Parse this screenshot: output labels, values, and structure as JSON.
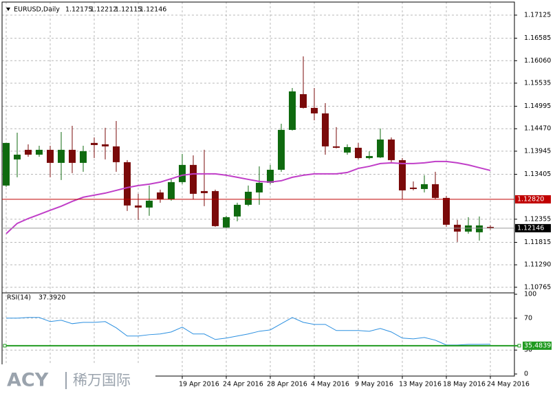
{
  "chart_data": [
    {
      "type": "candlestick",
      "title": "EURUSD,Daily",
      "categories": [
        null,
        null,
        null,
        null,
        null,
        null,
        null,
        null,
        null,
        null,
        null,
        null,
        null,
        null,
        null,
        null,
        "19 Apr 2016",
        null,
        null,
        null,
        "24 Apr 2016",
        null,
        null,
        null,
        "28 Apr 2016",
        null,
        null,
        null,
        "4 May 2016",
        null,
        null,
        null,
        "9 May 2016",
        null,
        null,
        null,
        "13 May 2016",
        null,
        null,
        null,
        "18 May 2016",
        null,
        null,
        null,
        "24 May 2016"
      ],
      "open": [
        1.13142,
        1.13752,
        1.13977,
        1.13864,
        1.13977,
        1.13672,
        1.13977,
        1.13672,
        1.14138,
        1.14105,
        1.14057,
        1.13688,
        1.12676,
        1.12628,
        1.12981,
        1.12821,
        1.13222,
        1.13624,
        1.13013,
        1.13013,
        1.12162,
        1.12419,
        1.12692,
        1.12981,
        1.13206,
        1.13511,
        1.14443,
        1.15278,
        1.14957,
        1.14828,
        1.14057,
        1.13913,
        1.14025,
        1.13784,
        1.138,
        1.14218,
        1.13736,
        1.13094,
        1.13061,
        1.13174,
        1.12853,
        1.12226,
        1.12066,
        1.1205,
        1.12175
      ],
      "high": [
        1.14138,
        1.14378,
        1.14105,
        1.14073,
        1.14073,
        1.14394,
        1.14539,
        1.14073,
        1.14266,
        1.14491,
        1.14651,
        1.13736,
        1.12949,
        1.13142,
        1.13045,
        1.13302,
        1.13881,
        1.13848,
        1.13977,
        1.13045,
        1.12435,
        1.1274,
        1.13142,
        1.13591,
        1.13624,
        1.14587,
        1.15422,
        1.16161,
        1.15422,
        1.15069,
        1.14507,
        1.14105,
        1.14138,
        1.13945,
        1.14475,
        1.14266,
        1.13784,
        1.13238,
        1.13383,
        1.13463,
        1.12901,
        1.12339,
        1.12403,
        1.12419,
        1.12212
      ],
      "low": [
        1.1311,
        1.13335,
        1.13816,
        1.13816,
        1.13335,
        1.1327,
        1.13431,
        1.13463,
        1.13784,
        1.13752,
        1.13463,
        1.12548,
        1.12339,
        1.12435,
        1.1274,
        1.12788,
        1.13174,
        1.12821,
        1.1266,
        1.12178,
        1.12146,
        1.12307,
        1.1266,
        1.12692,
        1.13174,
        1.13463,
        1.14427,
        1.14941,
        1.14667,
        1.13864,
        1.14009,
        1.13864,
        1.13752,
        1.13752,
        1.13784,
        1.13688,
        1.12821,
        1.13029,
        1.12981,
        1.12821,
        1.12178,
        1.11825,
        1.12018,
        1.11857,
        1.12115
      ],
      "close": [
        1.14138,
        1.13864,
        1.13864,
        1.13977,
        1.13672,
        1.13977,
        1.13672,
        1.13945,
        1.14089,
        1.14057,
        1.13688,
        1.12676,
        1.12628,
        1.12788,
        1.12821,
        1.13222,
        1.13624,
        1.12949,
        1.12965,
        1.12194,
        1.12403,
        1.12692,
        1.12997,
        1.13206,
        1.13511,
        1.14443,
        1.15342,
        1.14957,
        1.14828,
        1.14057,
        1.14025,
        1.14041,
        1.13784,
        1.13832,
        1.14218,
        1.13736,
        1.13029,
        1.13061,
        1.13174,
        1.12853,
        1.12226,
        1.12066,
        1.1221,
        1.1221,
        1.12146
      ],
      "up_color": "#0f6a0f",
      "down_color": "#7a0a0a",
      "overlays": [
        {
          "color": "#c03ec8",
          "values": [
            1.12018,
            1.12258,
            1.12371,
            1.12467,
            1.12564,
            1.1266,
            1.12772,
            1.12869,
            1.12917,
            1.12965,
            1.13029,
            1.13094,
            1.13142,
            1.13174,
            1.13222,
            1.13302,
            1.13383,
            1.13415,
            1.13415,
            1.13415,
            1.13383,
            1.13335,
            1.13286,
            1.13238,
            1.13222,
            1.13254,
            1.13335,
            1.13383,
            1.13415,
            1.13415,
            1.13415,
            1.13447,
            1.13543,
            1.13591,
            1.13656,
            1.13672,
            1.13656,
            1.13656,
            1.13672,
            1.13704,
            1.13704,
            1.13672,
            1.13624,
            1.13559,
            1.13495
          ]
        }
      ],
      "hlines": [
        {
          "value": 1.1282,
          "label": "1.12820",
          "color": "#c00000"
        }
      ],
      "ylim": [
        1.1065,
        1.1743
      ],
      "yticks": [
        1.17125,
        1.16585,
        {
          "value": 1.1606,
          "label": "1.16060"
        },
        1.15535,
        1.14995,
        {
          "value": 1.1447,
          "label": "1.14470"
        },
        1.13945,
        1.13405,
        1.12355,
        1.11815,
        {
          "value": 1.1129,
          "label": "1.11290"
        },
        1.10765
      ],
      "grid": true
    },
    {
      "type": "line",
      "title": "RSI(14)",
      "title_value": {
        "value": 37.392,
        "label": "37.3920"
      },
      "values": [
        70,
        70,
        70.9,
        70.9,
        65.7,
        67.4,
        63.1,
        64.8,
        64.8,
        65.7,
        57.9,
        47.6,
        47.6,
        49.3,
        50.2,
        52.7,
        58.8,
        50.2,
        50.2,
        43.3,
        45,
        47.6,
        50.2,
        53.6,
        55.3,
        63.1,
        70.9,
        64.8,
        62.2,
        62.2,
        54.5,
        54.5,
        54.5,
        53.6,
        57.1,
        52.7,
        45,
        44.1,
        45.8,
        42.4,
        36.3,
        36.3,
        37.2,
        37.2,
        37.392
      ],
      "color": "#2a8fe0",
      "level": 35.4839,
      "level_color": "#1f9a1f",
      "ylim": [
        0,
        100
      ],
      "yticks": [
        100,
        70,
        30,
        0
      ],
      "grid": true
    }
  ],
  "watermark": {
    "brand": "ACY",
    "name": "稀万国际"
  }
}
